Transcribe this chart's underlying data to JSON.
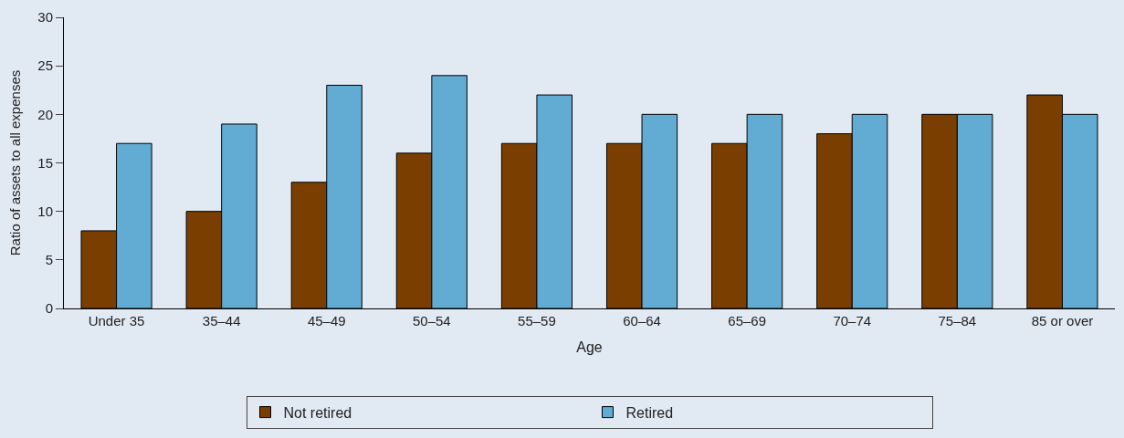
{
  "chart_data": {
    "type": "bar",
    "xlabel": "Age",
    "ylabel": "Ratio of assets to all expenses",
    "categories": [
      "Under 35",
      "35–44",
      "45–49",
      "50–54",
      "55–59",
      "60–64",
      "65–69",
      "70–74",
      "75–84",
      "85 or over"
    ],
    "series": [
      {
        "name": "Not retired",
        "color": "#7a3f00",
        "values": [
          8,
          10,
          13,
          16,
          17,
          17,
          17,
          18,
          20,
          22
        ]
      },
      {
        "name": "Retired",
        "color": "#62acd3",
        "values": [
          17,
          19,
          23,
          24,
          22,
          20,
          20,
          20,
          20,
          20
        ]
      }
    ],
    "ylim": [
      0,
      30
    ],
    "yticks": [
      0,
      5,
      10,
      15,
      20,
      25,
      30
    ],
    "grid": false,
    "legend": "bottom"
  }
}
